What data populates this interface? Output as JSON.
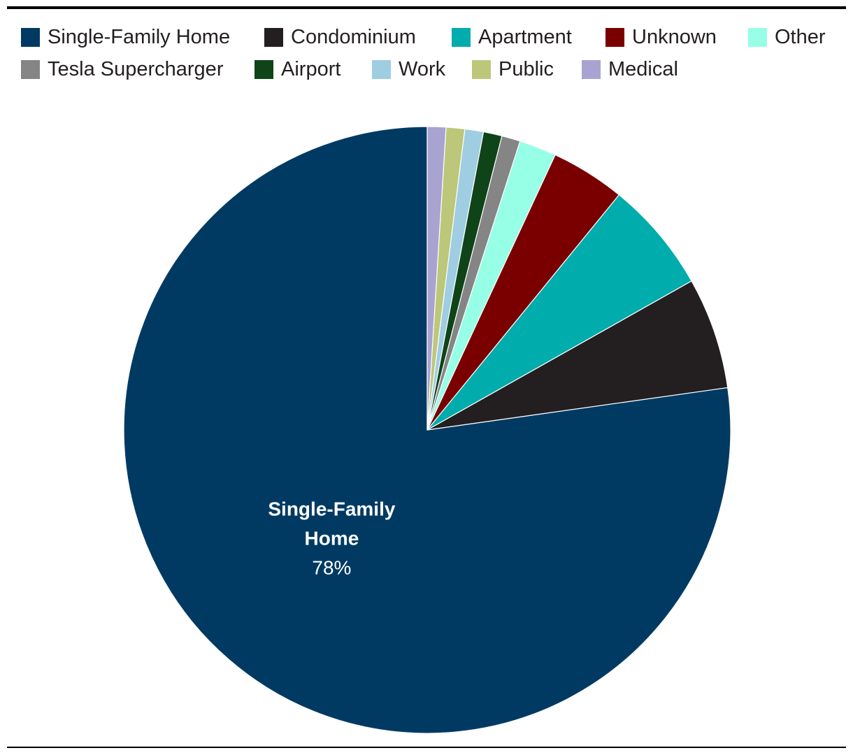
{
  "chart_data": {
    "type": "pie",
    "title": "",
    "legend_position": "top",
    "categories": [
      "Single-Family Home",
      "Condominium",
      "Apartment",
      "Unknown",
      "Other",
      "Tesla Supercharger",
      "Airport",
      "Work",
      "Public",
      "Medical"
    ],
    "values": [
      78,
      6,
      6,
      4,
      2,
      1,
      1,
      1,
      1,
      1
    ],
    "colors": [
      "#003a63",
      "#231f20",
      "#00acac",
      "#7a0000",
      "#96ffe6",
      "#858585",
      "#0f4418",
      "#9fcde2",
      "#bdc779",
      "#a9a3d1"
    ],
    "data_labels": [
      {
        "category_index": 0,
        "name_lines": [
          "Single-Family",
          "Home"
        ],
        "value": "78%"
      }
    ]
  }
}
